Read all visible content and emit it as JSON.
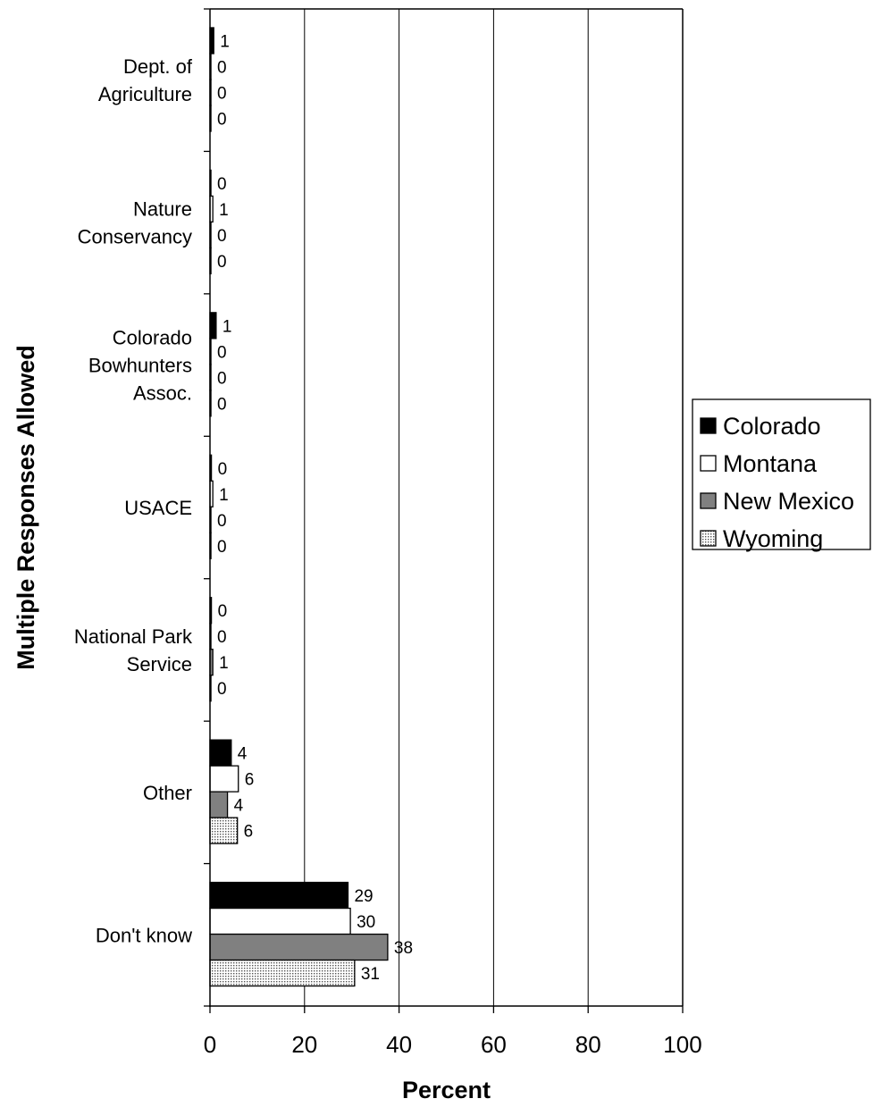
{
  "chart_data": {
    "type": "bar",
    "orientation": "horizontal",
    "categories": [
      [
        "Dept. of",
        "Agriculture"
      ],
      [
        "Nature",
        "Conservancy"
      ],
      [
        "Colorado",
        "Bowhunters",
        "Assoc."
      ],
      [
        "USACE"
      ],
      [
        "National Park",
        "Service"
      ],
      [
        "Other"
      ],
      [
        "Don't know"
      ]
    ],
    "series": [
      {
        "name": "Colorado",
        "values": [
          1,
          0,
          1,
          0,
          0,
          4,
          29
        ],
        "fill": "#000000",
        "pattern": "solid"
      },
      {
        "name": "Montana",
        "values": [
          0,
          1,
          0,
          1,
          0,
          6,
          30
        ],
        "fill": "#ffffff",
        "pattern": "solid"
      },
      {
        "name": "New Mexico",
        "values": [
          0,
          0,
          0,
          0,
          1,
          4,
          38
        ],
        "fill": "#808080",
        "pattern": "solid"
      },
      {
        "name": "Wyoming",
        "values": [
          0,
          0,
          0,
          0,
          0,
          6,
          31
        ],
        "fill": "#ffffff",
        "pattern": "dots"
      }
    ],
    "bar_values": [
      [
        0.8,
        0.2,
        1.3,
        0.3,
        0.3,
        4.5,
        29.2
      ],
      [
        0.2,
        0.6,
        0.2,
        0.6,
        0.2,
        6.0,
        29.7
      ],
      [
        0.2,
        0.2,
        0.2,
        0.2,
        0.6,
        3.7,
        37.6
      ],
      [
        0.2,
        0.2,
        0.2,
        0.2,
        0.2,
        5.8,
        30.6
      ]
    ],
    "xlabel": "Percent",
    "ylabel": "Multiple Responses Allowed",
    "xlim": [
      0,
      100
    ],
    "xticks": [
      "0",
      "20",
      "40",
      "60",
      "80",
      "100"
    ],
    "grid": "vertical",
    "legend": "right"
  }
}
